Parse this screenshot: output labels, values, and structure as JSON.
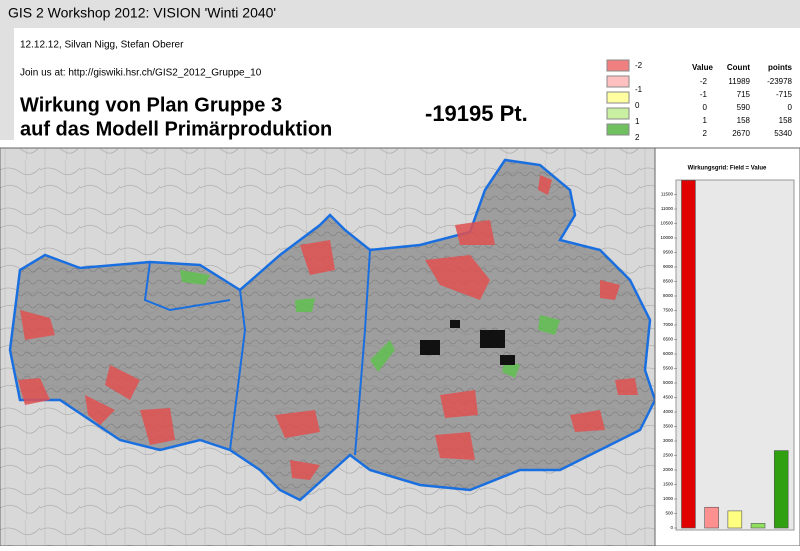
{
  "header": {
    "title": "GIS 2 Workshop 2012: VISION 'Winti 2040'",
    "authors": "12.12.12, Silvan Nigg, Stefan Oberer",
    "link": "Join us at: http://giswiki.hsr.ch/GIS2_2012_Gruppe_10",
    "heading_line1": "Wirkung von Plan Gruppe 3",
    "heading_line2": "auf das Modell Primärproduktion",
    "score": "-19195 Pt."
  },
  "legend": {
    "items": [
      {
        "label": "-2",
        "color": "#f08080"
      },
      {
        "label": "-1",
        "color": "#ffc0c0"
      },
      {
        "label": "0",
        "color": "#ffffa0"
      },
      {
        "label": "1",
        "color": "#c8f0a0"
      },
      {
        "label": "2",
        "color": "#70c060"
      }
    ]
  },
  "table": {
    "columns": [
      "Value",
      "Count",
      "points"
    ],
    "rows": [
      [
        -2,
        11989,
        -23978
      ],
      [
        -1,
        715,
        -715
      ],
      [
        0,
        590,
        0
      ],
      [
        1,
        158,
        158
      ],
      [
        2,
        2670,
        5340
      ]
    ]
  },
  "chart_data": {
    "type": "bar",
    "title": "Wirkungsgrid: Field = Value",
    "categories": [
      null,
      null,
      null,
      null,
      null
    ],
    "values": [
      11989,
      715,
      590,
      158,
      2670
    ],
    "colors": [
      "#e00000",
      "#ff9090",
      "#ffff80",
      "#90e060",
      "#30a010"
    ],
    "ylim": [
      0,
      12000
    ],
    "yticks": [
      0,
      500,
      1000,
      1500,
      2000,
      2500,
      3000,
      3500,
      4000,
      4500,
      5000,
      5500,
      6000,
      6500,
      7000,
      7500,
      8000,
      8500,
      9000,
      9500,
      10000,
      10500,
      11000,
      11500
    ],
    "grid": false
  }
}
